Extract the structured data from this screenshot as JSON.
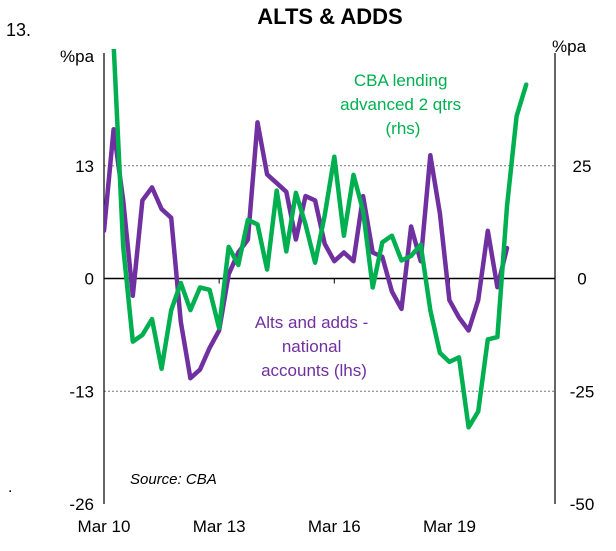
{
  "page": {
    "chart_number": "13.",
    "dot_mark": "."
  },
  "chart_data": {
    "type": "line",
    "title": "ALTS & ADDS",
    "left_axis": {
      "unit": "%pa",
      "ylim": [
        -26,
        26
      ],
      "ticks": [
        -26,
        -13,
        0,
        13
      ]
    },
    "right_axis": {
      "unit": "%pa",
      "ylim": [
        -50,
        50
      ],
      "ticks": [
        -50,
        -25,
        0,
        25
      ]
    },
    "x_axis": {
      "range": [
        2010.0,
        2021.75
      ],
      "ticks": [
        2010,
        2013,
        2016,
        2019
      ],
      "tick_labels": [
        "Mar 10",
        "Mar 13",
        "Mar 16",
        "Mar 19"
      ]
    },
    "grid": {
      "horizontal_dashed_at_left_values": [
        -13,
        13
      ]
    },
    "source": "Source: CBA",
    "colors": {
      "purple": "#7030A0",
      "green": "#00B050"
    },
    "series": [
      {
        "axis": "left",
        "color": "#7030A0",
        "label_lines": [
          "Alts and adds -",
          "national",
          "accounts (lhs)"
        ],
        "points": [
          [
            2010.0,
            5.5
          ],
          [
            2010.25,
            17.2
          ],
          [
            2010.5,
            9.0
          ],
          [
            2010.75,
            -2.0
          ],
          [
            2011.0,
            9.0
          ],
          [
            2011.25,
            10.5
          ],
          [
            2011.5,
            8.0
          ],
          [
            2011.75,
            7.0
          ],
          [
            2012.0,
            -5.0
          ],
          [
            2012.25,
            -11.5
          ],
          [
            2012.5,
            -10.5
          ],
          [
            2012.75,
            -8.0
          ],
          [
            2013.0,
            -6.0
          ],
          [
            2013.25,
            0.5
          ],
          [
            2013.5,
            3.0
          ],
          [
            2013.75,
            4.5
          ],
          [
            2014.0,
            18.0
          ],
          [
            2014.25,
            12.0
          ],
          [
            2014.5,
            11.0
          ],
          [
            2014.75,
            10.0
          ],
          [
            2015.0,
            4.5
          ],
          [
            2015.25,
            9.5
          ],
          [
            2015.5,
            9.0
          ],
          [
            2015.75,
            4.0
          ],
          [
            2016.0,
            2.0
          ],
          [
            2016.25,
            3.0
          ],
          [
            2016.5,
            2.0
          ],
          [
            2016.75,
            9.5
          ],
          [
            2017.0,
            3.0
          ],
          [
            2017.25,
            2.5
          ],
          [
            2017.5,
            -1.5
          ],
          [
            2017.75,
            -3.5
          ],
          [
            2018.0,
            6.0
          ],
          [
            2018.25,
            2.0
          ],
          [
            2018.5,
            14.2
          ],
          [
            2018.75,
            7.5
          ],
          [
            2019.0,
            -2.5
          ],
          [
            2019.25,
            -4.5
          ],
          [
            2019.5,
            -6.0
          ],
          [
            2019.75,
            -2.5
          ],
          [
            2020.0,
            5.5
          ],
          [
            2020.25,
            -1.0
          ],
          [
            2020.5,
            3.5
          ]
        ]
      },
      {
        "axis": "right",
        "color": "#00B050",
        "label_lines": [
          "CBA lending",
          "advanced 2 qtrs",
          "(rhs)"
        ],
        "points": [
          [
            2010.25,
            52.0
          ],
          [
            2010.5,
            7.0
          ],
          [
            2010.75,
            -14.0
          ],
          [
            2011.0,
            -12.5
          ],
          [
            2011.25,
            -9.0
          ],
          [
            2011.5,
            -20.0
          ],
          [
            2011.75,
            -7.0
          ],
          [
            2012.0,
            -1.0
          ],
          [
            2012.25,
            -7.0
          ],
          [
            2012.5,
            -2.0
          ],
          [
            2012.75,
            -2.5
          ],
          [
            2013.0,
            -11.0
          ],
          [
            2013.25,
            7.0
          ],
          [
            2013.5,
            3.0
          ],
          [
            2013.75,
            13.0
          ],
          [
            2014.0,
            12.0
          ],
          [
            2014.25,
            2.0
          ],
          [
            2014.5,
            19.5
          ],
          [
            2014.75,
            6.0
          ],
          [
            2015.0,
            19.0
          ],
          [
            2015.25,
            12.0
          ],
          [
            2015.5,
            3.5
          ],
          [
            2015.75,
            14.0
          ],
          [
            2016.0,
            27.0
          ],
          [
            2016.25,
            9.5
          ],
          [
            2016.5,
            23.0
          ],
          [
            2016.75,
            15.0
          ],
          [
            2017.0,
            -2.0
          ],
          [
            2017.25,
            8.0
          ],
          [
            2017.5,
            9.5
          ],
          [
            2017.75,
            4.0
          ],
          [
            2018.0,
            5.0
          ],
          [
            2018.25,
            7.5
          ],
          [
            2018.5,
            -7.0
          ],
          [
            2018.75,
            -16.5
          ],
          [
            2019.0,
            -18.5
          ],
          [
            2019.25,
            -17.5
          ],
          [
            2019.5,
            -33.0
          ],
          [
            2019.75,
            -29.5
          ],
          [
            2020.0,
            -13.5
          ],
          [
            2020.25,
            -13.0
          ],
          [
            2020.5,
            16.0
          ],
          [
            2020.75,
            36.0
          ],
          [
            2021.0,
            43.0
          ]
        ]
      }
    ]
  }
}
